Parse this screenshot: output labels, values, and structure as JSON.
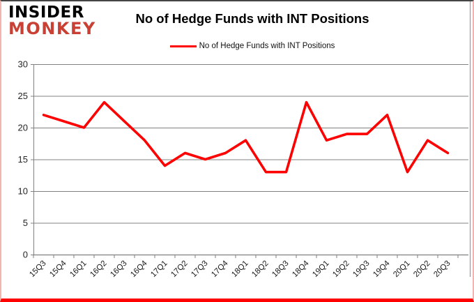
{
  "logo": {
    "line1": "INSIDER",
    "line2": "MONKEY"
  },
  "header": {
    "title": "No of Hedge Funds with INT Positions"
  },
  "legend": {
    "label": "No of Hedge Funds with INT Positions",
    "swatch_color": "#ff0000"
  },
  "chart_data": {
    "type": "line",
    "title": "No of Hedge Funds with INT Positions",
    "categories": [
      "15Q3",
      "15Q4",
      "16Q1",
      "16Q2",
      "16Q3",
      "16Q4",
      "17Q1",
      "17Q2",
      "17Q3",
      "17Q4",
      "18Q1",
      "18Q2",
      "18Q3",
      "18Q4",
      "19Q1",
      "19Q2",
      "19Q3",
      "19Q4",
      "20Q1",
      "20Q2",
      "20Q3"
    ],
    "series": [
      {
        "name": "No of Hedge Funds with INT Positions",
        "color": "#ff0000",
        "values": [
          22,
          21,
          20,
          24,
          21,
          18,
          14,
          16,
          15,
          16,
          18,
          13,
          13,
          24,
          18,
          19,
          19,
          22,
          13,
          18,
          16
        ]
      }
    ],
    "xlabel": "",
    "ylabel": "",
    "ylim": [
      0,
      30
    ],
    "yticks": [
      0,
      5,
      10,
      15,
      20,
      25,
      30
    ],
    "grid": true,
    "legend_position": "top"
  },
  "colors": {
    "line": "#ff0000",
    "grid": "#808080",
    "axis": "#808080",
    "tick_label": "#262626",
    "logo_black": "#000000",
    "logo_red": "#c84134",
    "border_bottom": "#fe0100",
    "border_side": "#f3b3ae",
    "border_top": "#454545"
  }
}
